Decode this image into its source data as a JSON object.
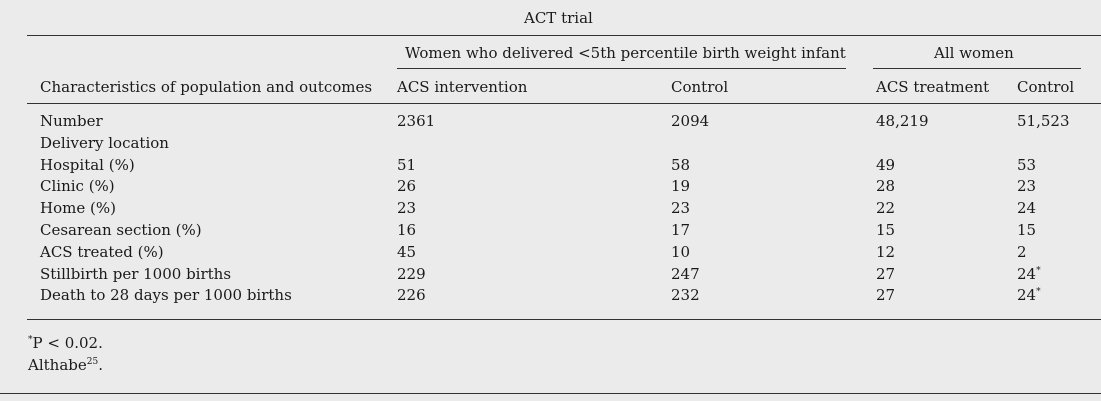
{
  "table": {
    "title": "ACT trial",
    "group_headers": {
      "subgroup": "Women who delivered <5th percentile birth weight infant",
      "all": "All women"
    },
    "columns": {
      "characteristics": "Characteristics of population and outcomes",
      "acs_intervention": "ACS intervention",
      "control_1": "Control",
      "acs_treatment": "ACS treatment",
      "control_2": "Control"
    },
    "rows": [
      {
        "label": "Number",
        "v1": "2361",
        "v2": "2094",
        "v3": "48,219",
        "v4": "51,523",
        "v4_sup": ""
      },
      {
        "label": "Delivery location",
        "v1": "",
        "v2": "",
        "v3": "",
        "v4": "",
        "v4_sup": ""
      },
      {
        "label": "Hospital (%)",
        "v1": "51",
        "v2": "58",
        "v3": "49",
        "v4": "53",
        "v4_sup": ""
      },
      {
        "label": "Clinic (%)",
        "v1": "26",
        "v2": "19",
        "v3": "28",
        "v4": "23",
        "v4_sup": ""
      },
      {
        "label": "Home (%)",
        "v1": "23",
        "v2": "23",
        "v3": "22",
        "v4": "24",
        "v4_sup": ""
      },
      {
        "label": "Cesarean section (%)",
        "v1": "16",
        "v2": "17",
        "v3": "15",
        "v4": "15",
        "v4_sup": ""
      },
      {
        "label": "ACS treated (%)",
        "v1": "45",
        "v2": "10",
        "v3": "12",
        "v4": "2",
        "v4_sup": ""
      },
      {
        "label": "Stillbirth per 1000 births",
        "v1": "229",
        "v2": "247",
        "v3": "27",
        "v4": "24",
        "v4_sup": "*"
      },
      {
        "label": "Death to 28 days per 1000 births",
        "v1": "226",
        "v2": "232",
        "v3": "27",
        "v4": "24",
        "v4_sup": "*"
      }
    ],
    "footnotes": {
      "significance_mark": "*",
      "significance_text": "P < 0.02.",
      "source_name": "Althabe",
      "source_ref": "25",
      "source_end": "."
    }
  }
}
